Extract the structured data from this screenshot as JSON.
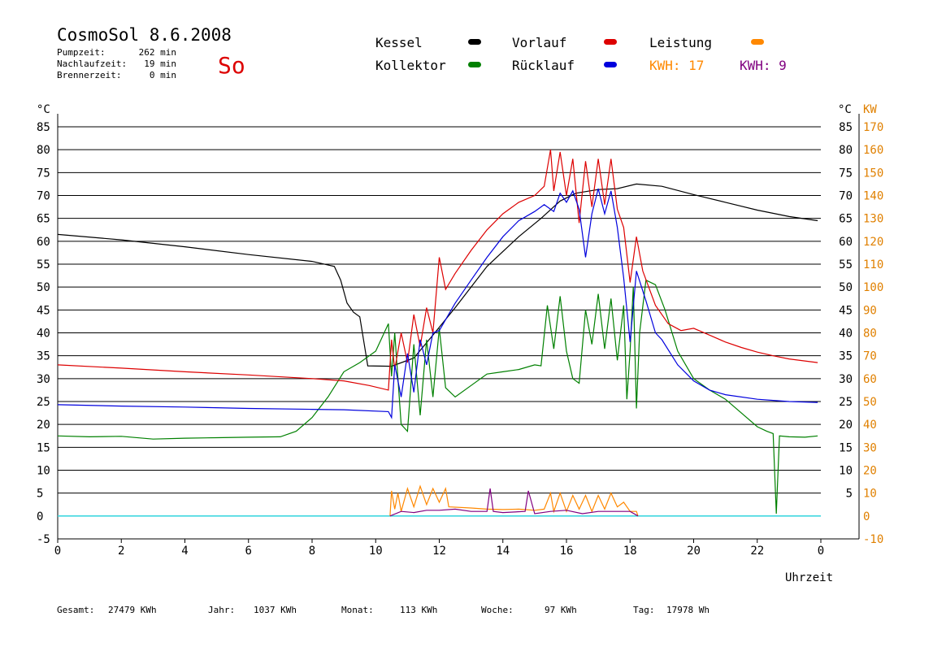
{
  "header": {
    "title": "CosmoSol 8.6.2008",
    "day": "So",
    "stats": [
      {
        "label": "Pumpzeit:",
        "value": "262 min"
      },
      {
        "label": "Nachlaufzeit:",
        "value": "19 min"
      },
      {
        "label": "Brennerzeit:",
        "value": "0 min"
      }
    ]
  },
  "legend": [
    {
      "label": "Kessel",
      "color": "#000000"
    },
    {
      "label": "Kollektor",
      "color": "#008000"
    },
    {
      "label": "Vorlauf",
      "color": "#dd0000"
    },
    {
      "label": "Rücklauf",
      "color": "#0000dd"
    },
    {
      "label": "Leistung",
      "color": "#ff8800"
    }
  ],
  "kwh": [
    {
      "text": "KWH: 17",
      "color": "#ff8800"
    },
    {
      "text": "KWH: 9",
      "color": "#800080"
    }
  ],
  "footer": [
    {
      "label": "Gesamt:",
      "value": "27479 KWh"
    },
    {
      "label": "Jahr:",
      "value": "1037 KWh"
    },
    {
      "label": "Monat:",
      "value": "113 KWh"
    },
    {
      "label": "Woche:",
      "value": "97 KWh"
    },
    {
      "label": "Tag:",
      "value": "17978 Wh"
    }
  ],
  "chart_data": {
    "type": "line",
    "xlabel": "Uhrzeit",
    "ylabel": "°C",
    "ylabel_right": "KW",
    "ylim": [
      -5,
      85
    ],
    "y2lim": [
      -10,
      170
    ],
    "xlim": [
      0,
      24
    ],
    "x_ticks": [
      "0",
      "2",
      "4",
      "6",
      "8",
      "10",
      "12",
      "14",
      "16",
      "18",
      "20",
      "22",
      "0"
    ],
    "y_ticks": [
      -5,
      0,
      5,
      10,
      15,
      20,
      25,
      30,
      35,
      40,
      45,
      50,
      55,
      60,
      65,
      70,
      75,
      80,
      85
    ],
    "y2_ticks": [
      -10,
      0,
      10,
      20,
      30,
      40,
      50,
      60,
      70,
      80,
      90,
      100,
      110,
      120,
      130,
      140,
      150,
      160,
      170
    ],
    "right_celsius_ticks": [
      5,
      10,
      15,
      20,
      25,
      30,
      35,
      40,
      45,
      50,
      55,
      60,
      65,
      70,
      75,
      80,
      85
    ],
    "grid": true,
    "series": [
      {
        "name": "Kessel",
        "color": "#000000",
        "x": [
          0,
          2,
          4,
          6,
          8,
          8.7,
          8.9,
          9.1,
          9.3,
          9.5,
          9.7,
          9.75,
          10.5,
          11.2,
          11.8,
          12.5,
          13.5,
          14.5,
          15.2,
          15.8,
          16.3,
          17,
          17.6,
          18.2,
          19,
          20,
          21,
          22,
          23,
          23.9
        ],
        "y": [
          61.5,
          60.3,
          58.8,
          57.1,
          55.6,
          54.5,
          51.5,
          46.5,
          44.5,
          43.5,
          35.0,
          32.8,
          32.7,
          34.5,
          39.5,
          45.5,
          54.5,
          61.0,
          65.0,
          68.8,
          70.5,
          71.3,
          71.5,
          72.5,
          72.0,
          70.2,
          68.5,
          66.8,
          65.4,
          64.5
        ]
      },
      {
        "name": "Kollektor",
        "color": "#008000",
        "x": [
          0,
          1,
          2,
          3,
          4,
          5,
          6,
          7,
          7.5,
          8,
          8.5,
          9,
          9.5,
          10,
          10.4,
          10.5,
          10.6,
          10.8,
          11,
          11.2,
          11.4,
          11.6,
          11.8,
          12,
          12.2,
          12.5,
          13,
          13.5,
          14,
          14.5,
          15,
          15.2,
          15.4,
          15.6,
          15.8,
          16,
          16.2,
          16.4,
          16.6,
          16.8,
          17,
          17.2,
          17.4,
          17.6,
          17.8,
          17.9,
          18,
          18.1,
          18.2,
          18.3,
          18.5,
          18.8,
          19.1,
          19.5,
          20,
          20.5,
          21,
          21.5,
          22,
          22.3,
          22.5,
          22.6,
          22.7,
          23,
          23.5,
          23.9
        ],
        "y": [
          17.5,
          17.3,
          17.4,
          16.8,
          17.0,
          17.1,
          17.2,
          17.3,
          18.5,
          21.5,
          26.0,
          31.5,
          33.5,
          36.0,
          42.0,
          30.5,
          40.0,
          20.0,
          18.5,
          37.5,
          22.0,
          38.5,
          26.0,
          41.0,
          28.0,
          26.0,
          28.5,
          31.0,
          31.5,
          32.0,
          33.0,
          32.8,
          46.0,
          36.5,
          48.0,
          36.0,
          30.0,
          29.0,
          45.0,
          37.5,
          48.5,
          36.5,
          47.5,
          34.0,
          46.0,
          25.5,
          36.0,
          50.0,
          23.5,
          40.0,
          51.5,
          50.5,
          45.0,
          36.0,
          30.0,
          27.5,
          25.5,
          22.5,
          19.5,
          18.5,
          18.0,
          0.5,
          17.5,
          17.3,
          17.2,
          17.5
        ]
      },
      {
        "name": "Vorlauf",
        "color": "#dd0000",
        "x": [
          0,
          2,
          4,
          6,
          8,
          9,
          9.8,
          10.4,
          10.5,
          10.6,
          10.8,
          11,
          11.2,
          11.4,
          11.6,
          11.8,
          12,
          12.2,
          12.5,
          13,
          13.5,
          14,
          14.5,
          15,
          15.3,
          15.5,
          15.6,
          15.8,
          16,
          16.2,
          16.4,
          16.6,
          16.8,
          17,
          17.2,
          17.4,
          17.6,
          17.8,
          18,
          18.2,
          18.4,
          18.8,
          19.2,
          19.6,
          20,
          20.5,
          21,
          21.5,
          22,
          22.5,
          23,
          23.9
        ],
        "y": [
          33.0,
          32.3,
          31.5,
          30.8,
          30.0,
          29.5,
          28.5,
          27.5,
          38.5,
          32.0,
          40.0,
          33.5,
          44.0,
          37.0,
          45.5,
          40.0,
          56.5,
          49.5,
          53.0,
          58.0,
          62.5,
          66.0,
          68.5,
          70.0,
          72.0,
          80.0,
          71.0,
          79.5,
          70.0,
          78.0,
          64.0,
          77.5,
          67.5,
          78.0,
          68.0,
          78.0,
          67.0,
          63.0,
          51.0,
          61.0,
          53.5,
          46.0,
          42.0,
          40.5,
          41.0,
          39.5,
          38.0,
          36.8,
          35.8,
          35.0,
          34.3,
          33.5
        ]
      },
      {
        "name": "Rücklauf",
        "color": "#0000dd",
        "x": [
          0,
          2,
          4,
          6,
          8,
          9,
          10.4,
          10.5,
          10.6,
          10.8,
          11,
          11.2,
          11.4,
          11.6,
          11.8,
          12,
          12.5,
          13,
          13.5,
          14,
          14.5,
          15,
          15.3,
          15.6,
          15.8,
          16,
          16.2,
          16.4,
          16.6,
          16.8,
          17,
          17.2,
          17.4,
          17.6,
          17.8,
          18,
          18.2,
          18.5,
          18.8,
          19,
          19.5,
          20,
          20.5,
          21,
          22,
          23,
          23.9
        ],
        "y": [
          24.3,
          24.0,
          23.8,
          23.5,
          23.3,
          23.2,
          22.8,
          21.5,
          33.0,
          26.0,
          35.5,
          27.0,
          38.5,
          33.0,
          40.0,
          40.5,
          46.5,
          51.5,
          56.5,
          61.0,
          64.5,
          66.5,
          68.0,
          66.5,
          70.5,
          68.5,
          71.0,
          67.0,
          56.5,
          66.0,
          71.5,
          66.0,
          71.0,
          63.0,
          52.0,
          38.0,
          53.5,
          47.0,
          40.0,
          38.5,
          33.0,
          29.5,
          27.5,
          26.5,
          25.5,
          25.0,
          24.8
        ]
      },
      {
        "name": "Leistung",
        "color": "#ff8800",
        "axis": "right",
        "x": [
          10.45,
          10.5,
          10.6,
          10.7,
          10.8,
          11,
          11.2,
          11.4,
          11.6,
          11.8,
          12,
          12.2,
          12.3,
          13,
          13.5,
          14,
          14.5,
          15,
          15.3,
          15.5,
          15.6,
          15.8,
          16,
          16.2,
          16.4,
          16.6,
          16.8,
          17,
          17.2,
          17.4,
          17.6,
          17.8,
          18,
          18.2,
          18.25
        ],
        "y": [
          0,
          11,
          3,
          10,
          2,
          12,
          4,
          13,
          5,
          12,
          6,
          12,
          4,
          3.5,
          3,
          2.8,
          3,
          2.5,
          3,
          10,
          2,
          10,
          2,
          9,
          3,
          9,
          2,
          9,
          3,
          10,
          4,
          6,
          2,
          2,
          0
        ]
      },
      {
        "name": "Leistung KWH 9",
        "color": "#800080",
        "axis": "right",
        "x": [
          10.45,
          10.8,
          11.2,
          11.6,
          12,
          12.5,
          13,
          13.5,
          13.6,
          13.7,
          14,
          14.7,
          14.8,
          15,
          15.5,
          16,
          16.5,
          17,
          17.5,
          17.8,
          18,
          18.25
        ],
        "y": [
          0,
          2,
          1.5,
          2.5,
          2.5,
          3,
          2,
          2,
          12,
          2,
          1.5,
          2,
          11,
          1,
          2,
          2.5,
          1,
          2,
          2,
          2,
          2,
          0
        ]
      }
    ]
  }
}
